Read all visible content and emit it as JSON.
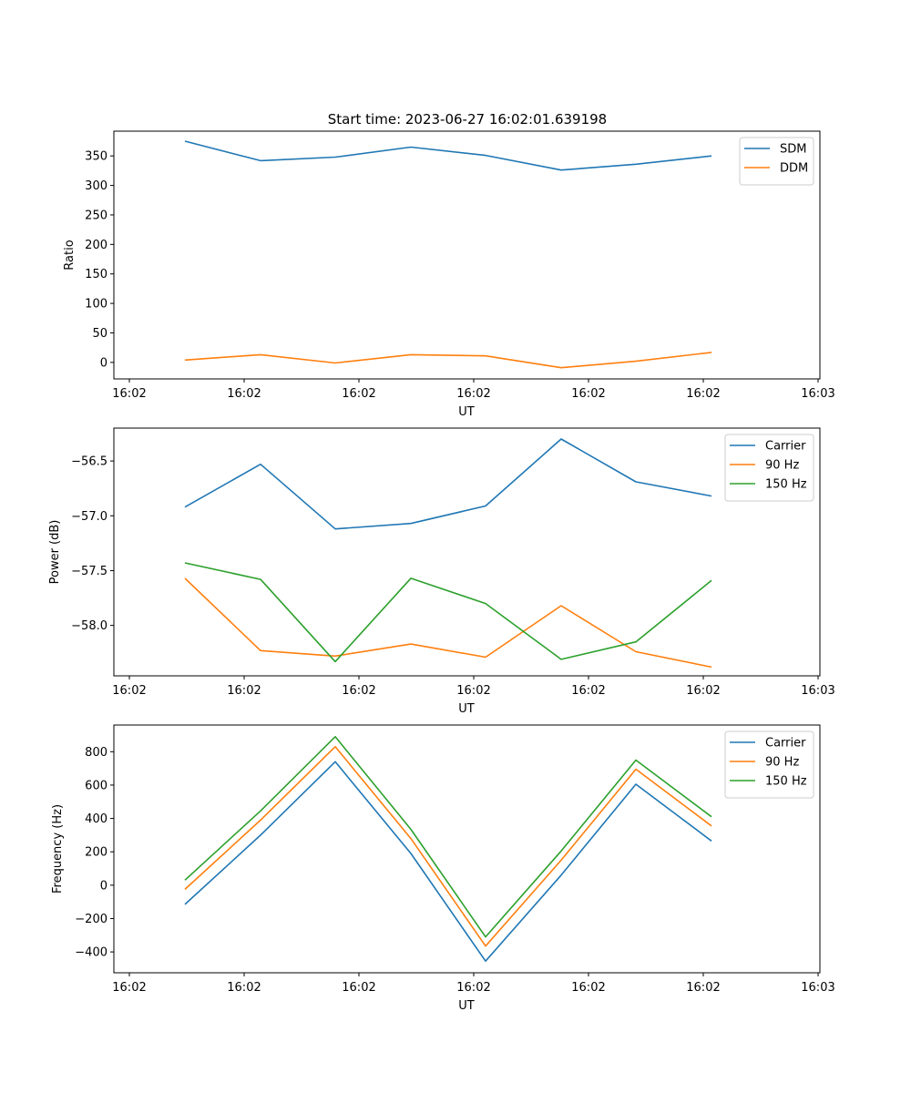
{
  "figure_title": "Start time: 2023-06-27 16:02:01.639198",
  "chart_data": [
    {
      "type": "line",
      "title": "Start time: 2023-06-27 16:02:01.639198",
      "xlabel": "UT",
      "ylabel": "Ratio",
      "x_ticks": [
        "16:02",
        "16:02",
        "16:02",
        "16:02",
        "16:02",
        "16:02",
        "16:03"
      ],
      "y_ticks": [
        "0",
        "50",
        "100",
        "150",
        "200",
        "250",
        "300",
        "350"
      ],
      "ylim": [
        -28,
        392
      ],
      "legend_position": "upper right",
      "series": [
        {
          "name": "SDM",
          "color": "#1f77b4",
          "values": [
            375,
            342,
            348,
            365,
            351,
            326,
            336,
            350
          ]
        },
        {
          "name": "DDM",
          "color": "#ff7f0e",
          "values": [
            4,
            13,
            -1,
            13,
            11,
            -9,
            2,
            17
          ]
        }
      ]
    },
    {
      "type": "line",
      "title": "",
      "xlabel": "UT",
      "ylabel": "Power (dB)",
      "x_ticks": [
        "16:02",
        "16:02",
        "16:02",
        "16:02",
        "16:02",
        "16:02",
        "16:03"
      ],
      "y_ticks": [
        "−56.5",
        "−57.0",
        "−57.5",
        "−58.0"
      ],
      "ylim": [
        -58.46,
        -56.2
      ],
      "legend_position": "upper right",
      "series": [
        {
          "name": "Carrier",
          "color": "#1f77b4",
          "values": [
            -56.92,
            -56.53,
            -57.12,
            -57.07,
            -56.91,
            -56.3,
            -56.69,
            -56.82
          ]
        },
        {
          "name": "90 Hz",
          "color": "#ff7f0e",
          "values": [
            -57.57,
            -58.23,
            -58.28,
            -58.17,
            -58.29,
            -57.82,
            -58.24,
            -58.38
          ]
        },
        {
          "name": "150 Hz",
          "color": "#2ca02c",
          "values": [
            -57.43,
            -57.58,
            -58.33,
            -57.57,
            -57.8,
            -58.31,
            -58.15,
            -57.59
          ]
        }
      ]
    },
    {
      "type": "line",
      "title": "",
      "xlabel": "UT",
      "ylabel": "Frequency (Hz)",
      "x_ticks": [
        "16:02",
        "16:02",
        "16:02",
        "16:02",
        "16:02",
        "16:02",
        "16:03"
      ],
      "y_ticks": [
        "−400",
        "−200",
        "0",
        "200",
        "400",
        "600",
        "800"
      ],
      "ylim": [
        -525,
        960
      ],
      "legend_position": "upper right",
      "series": [
        {
          "name": "Carrier",
          "color": "#1f77b4",
          "values": [
            -115,
            300,
            740,
            190,
            -455,
            60,
            605,
            265
          ]
        },
        {
          "name": "90 Hz",
          "color": "#ff7f0e",
          "values": [
            -25,
            390,
            830,
            280,
            -365,
            150,
            695,
            355
          ]
        },
        {
          "name": "150 Hz",
          "color": "#2ca02c",
          "values": [
            30,
            445,
            890,
            335,
            -310,
            205,
            750,
            410
          ]
        }
      ]
    }
  ]
}
